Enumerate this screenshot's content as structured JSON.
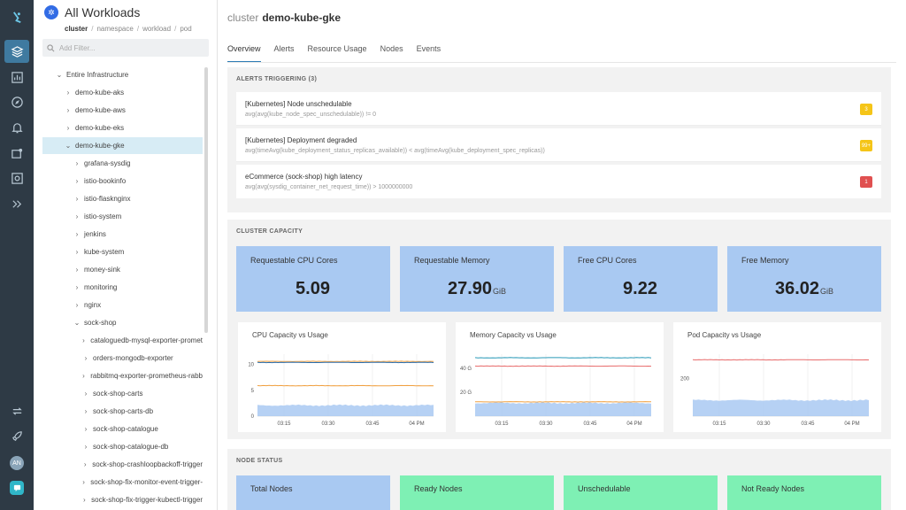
{
  "app": {
    "panel_title": "All Workloads",
    "breadcrumb": {
      "current": "cluster",
      "rest": [
        "namespace",
        "workload",
        "pod"
      ]
    },
    "filter_placeholder": "Add Filter...",
    "user_initials": "AN"
  },
  "tree": [
    {
      "label": "Entire Infrastructure",
      "depth": 0,
      "expanded": true
    },
    {
      "label": "demo-kube-aks",
      "depth": 1,
      "expanded": false
    },
    {
      "label": "demo-kube-aws",
      "depth": 1,
      "expanded": false
    },
    {
      "label": "demo-kube-eks",
      "depth": 1,
      "expanded": false
    },
    {
      "label": "demo-kube-gke",
      "depth": 1,
      "expanded": true,
      "selected": true
    },
    {
      "label": "grafana-sysdig",
      "depth": 2,
      "expanded": false
    },
    {
      "label": "istio-bookinfo",
      "depth": 2,
      "expanded": false
    },
    {
      "label": "istio-flasknginx",
      "depth": 2,
      "expanded": false
    },
    {
      "label": "istio-system",
      "depth": 2,
      "expanded": false
    },
    {
      "label": "jenkins",
      "depth": 2,
      "expanded": false
    },
    {
      "label": "kube-system",
      "depth": 2,
      "expanded": false
    },
    {
      "label": "money-sink",
      "depth": 2,
      "expanded": false
    },
    {
      "label": "monitoring",
      "depth": 2,
      "expanded": false
    },
    {
      "label": "nginx",
      "depth": 2,
      "expanded": false
    },
    {
      "label": "sock-shop",
      "depth": 2,
      "expanded": true
    },
    {
      "label": "cataloguedb-mysql-exporter-promet",
      "depth": 3,
      "expanded": false
    },
    {
      "label": "orders-mongodb-exporter",
      "depth": 3,
      "expanded": false
    },
    {
      "label": "rabbitmq-exporter-prometheus-rabb",
      "depth": 3,
      "expanded": false
    },
    {
      "label": "sock-shop-carts",
      "depth": 3,
      "expanded": false
    },
    {
      "label": "sock-shop-carts-db",
      "depth": 3,
      "expanded": false
    },
    {
      "label": "sock-shop-catalogue",
      "depth": 3,
      "expanded": false
    },
    {
      "label": "sock-shop-catalogue-db",
      "depth": 3,
      "expanded": false
    },
    {
      "label": "sock-shop-crashloopbackoff-trigger",
      "depth": 3,
      "expanded": false
    },
    {
      "label": "sock-shop-fix-monitor-event-trigger-",
      "depth": 3,
      "expanded": false
    },
    {
      "label": "sock-shop-fix-trigger-kubectl-trigger",
      "depth": 3,
      "expanded": false
    }
  ],
  "header": {
    "prefix": "cluster",
    "name": "demo-kube-gke",
    "tabs": [
      "Overview",
      "Alerts",
      "Resource Usage",
      "Nodes",
      "Events"
    ],
    "active_tab": "Overview"
  },
  "alerts": {
    "title": "ALERTS TRIGGERING (3)",
    "items": [
      {
        "name": "[Kubernetes] Node unschedulable",
        "query": "avg(avg(kube_node_spec_unschedulable)) != 0",
        "count": "3",
        "color": "#f5c518"
      },
      {
        "name": "[Kubernetes] Deployment degraded",
        "query": "avg(timeAvg(kube_deployment_status_replicas_available)) < avg(timeAvg(kube_deployment_spec_replicas))",
        "count": "99+",
        "color": "#f5c518"
      },
      {
        "name": "eCommerce (sock-shop) high latency",
        "query": "avg(avg(sysdig_container_net_request_time)) > 1000000000",
        "count": "1",
        "color": "#e05050"
      }
    ]
  },
  "capacity": {
    "title": "CLUSTER CAPACITY",
    "stats": [
      {
        "label": "Requestable CPU Cores",
        "value": "5.09",
        "unit": ""
      },
      {
        "label": "Requestable Memory",
        "value": "27.90",
        "unit": "GiB"
      },
      {
        "label": "Free CPU Cores",
        "value": "9.22",
        "unit": ""
      },
      {
        "label": "Free Memory",
        "value": "36.02",
        "unit": "GiB"
      }
    ],
    "colors": {
      "stat_bg": "#a9c9f2",
      "usage_fill": "#a9c9f2",
      "line_blue": "#2a6fb0",
      "line_red": "#e86b6b",
      "line_orange": "#f0a040",
      "line_teal": "#2a9ab8"
    }
  },
  "chart_data": [
    {
      "type": "line",
      "title": "CPU Capacity vs Usage",
      "x_ticks": [
        "03:15",
        "03:30",
        "03:45",
        "04 PM"
      ],
      "y_ticks": [
        "0",
        "5",
        "10"
      ],
      "ylim": [
        0,
        12
      ],
      "series": [
        {
          "value": 10.6,
          "color": "#f0a040"
        },
        {
          "value": 10.4,
          "color": "#2a6fb0"
        },
        {
          "value": 5.9,
          "color": "#f0a040"
        },
        {
          "value": 2.1,
          "color": "#a9c9f2",
          "fill": true
        }
      ]
    },
    {
      "type": "line",
      "title": "Memory Capacity vs Usage",
      "x_ticks": [
        "03:15",
        "03:30",
        "03:45",
        "04 PM"
      ],
      "y_ticks": [
        "20 G",
        "40 G"
      ],
      "ylim": [
        0,
        52
      ],
      "series": [
        {
          "value": 49,
          "color": "#2a9ab8"
        },
        {
          "value": 42,
          "color": "#e86b6b"
        },
        {
          "value": 12,
          "color": "#f0a040"
        },
        {
          "value": 11,
          "color": "#a9c9f2",
          "fill": true
        }
      ]
    },
    {
      "type": "line",
      "title": "Pod Capacity vs Usage",
      "x_ticks": [
        "03:15",
        "03:30",
        "03:45",
        "04 PM"
      ],
      "y_ticks": [
        "200"
      ],
      "ylim": [
        0,
        330
      ],
      "series": [
        {
          "value": 300,
          "color": "#e86b6b"
        },
        {
          "value": 85,
          "color": "#a9c9f2",
          "fill": true
        }
      ]
    }
  ],
  "node_status": {
    "title": "NODE STATUS",
    "cards": [
      {
        "label": "Total Nodes",
        "color": "#a9c9f2"
      },
      {
        "label": "Ready Nodes",
        "color": "#7ef0b4"
      },
      {
        "label": "Unschedulable",
        "color": "#7ef0b4"
      },
      {
        "label": "Not Ready Nodes",
        "color": "#7ef0b4"
      }
    ]
  }
}
